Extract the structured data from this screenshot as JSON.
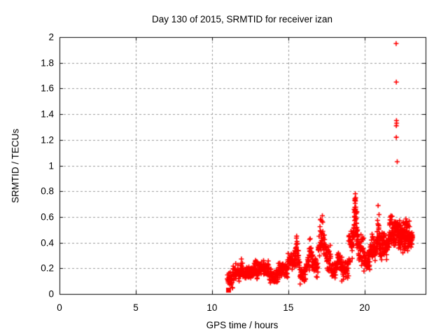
{
  "chart_data": {
    "type": "scatter",
    "title": "Day 130 of 2015, SRMTID for receiver izan",
    "xlabel": "GPS time / hours",
    "ylabel": "SRMTID / TECUs",
    "xlim": [
      0,
      24
    ],
    "ylim": [
      0,
      2
    ],
    "xticks": [
      0,
      5,
      10,
      15,
      20
    ],
    "yticks": [
      0,
      0.2,
      0.4,
      0.6,
      0.8,
      1,
      1.2,
      1.4,
      1.6,
      1.8,
      2
    ],
    "ytick_labels": [
      "0",
      "0.2",
      "0.4",
      "0.6",
      "0.8",
      "1",
      "1.2",
      "1.4",
      "1.6",
      "1.8",
      "2"
    ],
    "xtick_labels": [
      "0",
      "5",
      "10",
      "15",
      "20"
    ],
    "grid": true,
    "grid_style": "dashed",
    "grid_color": "#999999",
    "border_color": "#000000",
    "background_color": "#ffffff",
    "legend": "none",
    "series": [
      {
        "name": "SRMTID",
        "marker": "plus",
        "color": "#ff0000",
        "time_span_hours": [
          11.0,
          23.15
        ],
        "start_point": {
          "x": 11.05,
          "y": 0.03,
          "marker": "filled-square"
        },
        "band_segments": [
          {
            "t0": 11.0,
            "t1": 11.35,
            "lo": 0.03,
            "hi": 0.19,
            "n": 25
          },
          {
            "t0": 11.35,
            "t1": 11.8,
            "lo": 0.09,
            "hi": 0.24,
            "n": 42
          },
          {
            "t0": 11.8,
            "t1": 12.15,
            "lo": 0.13,
            "hi": 0.3,
            "n": 40,
            "apex": 11.95
          },
          {
            "t0": 12.15,
            "t1": 12.7,
            "lo": 0.1,
            "hi": 0.22,
            "n": 52
          },
          {
            "t0": 12.7,
            "t1": 13.25,
            "lo": 0.11,
            "hi": 0.27,
            "n": 52
          },
          {
            "t0": 13.25,
            "t1": 13.75,
            "lo": 0.12,
            "hi": 0.28,
            "n": 46
          },
          {
            "t0": 13.75,
            "t1": 14.35,
            "lo": 0.07,
            "hi": 0.2,
            "n": 52
          },
          {
            "t0": 14.35,
            "t1": 14.95,
            "lo": 0.12,
            "hi": 0.26,
            "n": 52
          },
          {
            "t0": 14.95,
            "t1": 15.35,
            "lo": 0.16,
            "hi": 0.33,
            "n": 36
          },
          {
            "t0": 15.35,
            "t1": 15.75,
            "lo": 0.2,
            "hi": 0.55,
            "n": 48,
            "apex": 15.55
          },
          {
            "t0": 15.75,
            "t1": 16.15,
            "lo": 0.07,
            "hi": 0.22,
            "n": 36
          },
          {
            "t0": 16.15,
            "t1": 16.65,
            "lo": 0.17,
            "hi": 0.5,
            "n": 52,
            "apex": 16.45
          },
          {
            "t0": 16.65,
            "t1": 16.95,
            "lo": 0.1,
            "hi": 0.3,
            "n": 26
          },
          {
            "t0": 16.95,
            "t1": 17.5,
            "lo": 0.28,
            "hi": 0.72,
            "n": 62,
            "apex": 17.2
          },
          {
            "t0": 17.5,
            "t1": 17.8,
            "lo": 0.15,
            "hi": 0.4,
            "n": 30
          },
          {
            "t0": 17.8,
            "t1": 18.1,
            "lo": 0.1,
            "hi": 0.27,
            "n": 30
          },
          {
            "t0": 18.1,
            "t1": 18.5,
            "lo": 0.17,
            "hi": 0.42,
            "n": 42,
            "apex": 18.3
          },
          {
            "t0": 18.5,
            "t1": 18.95,
            "lo": 0.08,
            "hi": 0.3,
            "n": 42
          },
          {
            "t0": 18.95,
            "t1": 19.25,
            "lo": 0.22,
            "hi": 0.5,
            "n": 30
          },
          {
            "t0": 19.25,
            "t1": 19.6,
            "lo": 0.35,
            "hi": 0.95,
            "n": 72,
            "apex": 19.4
          },
          {
            "t0": 19.6,
            "t1": 19.95,
            "lo": 0.2,
            "hi": 0.5,
            "n": 36
          },
          {
            "t0": 19.95,
            "t1": 20.35,
            "lo": 0.15,
            "hi": 0.35,
            "n": 42
          },
          {
            "t0": 20.35,
            "t1": 20.7,
            "lo": 0.22,
            "hi": 0.48,
            "n": 40
          },
          {
            "t0": 20.7,
            "t1": 21.05,
            "lo": 0.28,
            "hi": 0.74,
            "n": 52,
            "apex": 20.9
          },
          {
            "t0": 21.05,
            "t1": 21.45,
            "lo": 0.26,
            "hi": 0.52,
            "n": 46
          },
          {
            "t0": 21.45,
            "t1": 21.95,
            "lo": 0.33,
            "hi": 0.75,
            "n": 62,
            "apex": 21.75
          },
          {
            "t0": 21.95,
            "t1": 22.25,
            "lo": 0.33,
            "hi": 0.62,
            "n": 46
          },
          {
            "t0": 22.25,
            "t1": 22.95,
            "lo": 0.3,
            "hi": 0.6,
            "n": 112
          },
          {
            "t0": 22.95,
            "t1": 23.15,
            "lo": 0.36,
            "hi": 0.52,
            "n": 26
          }
        ],
        "outlier_points": [
          {
            "x": 22.14,
            "y": 1.03
          },
          {
            "x": 22.08,
            "y": 1.22
          },
          {
            "x": 22.08,
            "y": 1.31
          },
          {
            "x": 22.1,
            "y": 1.33
          },
          {
            "x": 22.09,
            "y": 1.35
          },
          {
            "x": 22.08,
            "y": 1.65
          },
          {
            "x": 22.07,
            "y": 1.95
          }
        ]
      }
    ]
  }
}
